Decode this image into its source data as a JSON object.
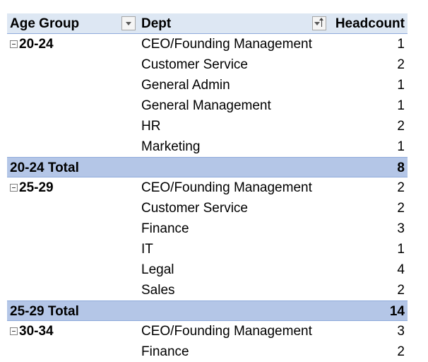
{
  "header": {
    "age_group": "Age Group",
    "dept": "Dept",
    "headcount": "Headcount"
  },
  "groups": [
    {
      "label": "20-24",
      "rows": [
        {
          "dept": "CEO/Founding Management",
          "count": "1"
        },
        {
          "dept": "Customer Service",
          "count": "2"
        },
        {
          "dept": "General Admin",
          "count": "1"
        },
        {
          "dept": "General Management",
          "count": "1"
        },
        {
          "dept": "HR",
          "count": "2"
        },
        {
          "dept": "Marketing",
          "count": "1"
        }
      ],
      "total_label": "20-24 Total",
      "total": "8"
    },
    {
      "label": "25-29",
      "rows": [
        {
          "dept": "CEO/Founding Management",
          "count": "2"
        },
        {
          "dept": "Customer Service",
          "count": "2"
        },
        {
          "dept": "Finance",
          "count": "3"
        },
        {
          "dept": "IT",
          "count": "1"
        },
        {
          "dept": "Legal",
          "count": "4"
        },
        {
          "dept": "Sales",
          "count": "2"
        }
      ],
      "total_label": "25-29 Total",
      "total": "14"
    },
    {
      "label": "30-34",
      "rows": [
        {
          "dept": "CEO/Founding Management",
          "count": "3"
        },
        {
          "dept": "Finance",
          "count": "2"
        }
      ]
    }
  ],
  "icons": {
    "collapse": "collapse-minus-icon",
    "filter": "filter-dropdown-icon",
    "sort": "sort-ascending-icon"
  },
  "colors": {
    "header_bg": "#dde7f3",
    "total_bg": "#b4c6e7",
    "border": "#8eaadb"
  }
}
